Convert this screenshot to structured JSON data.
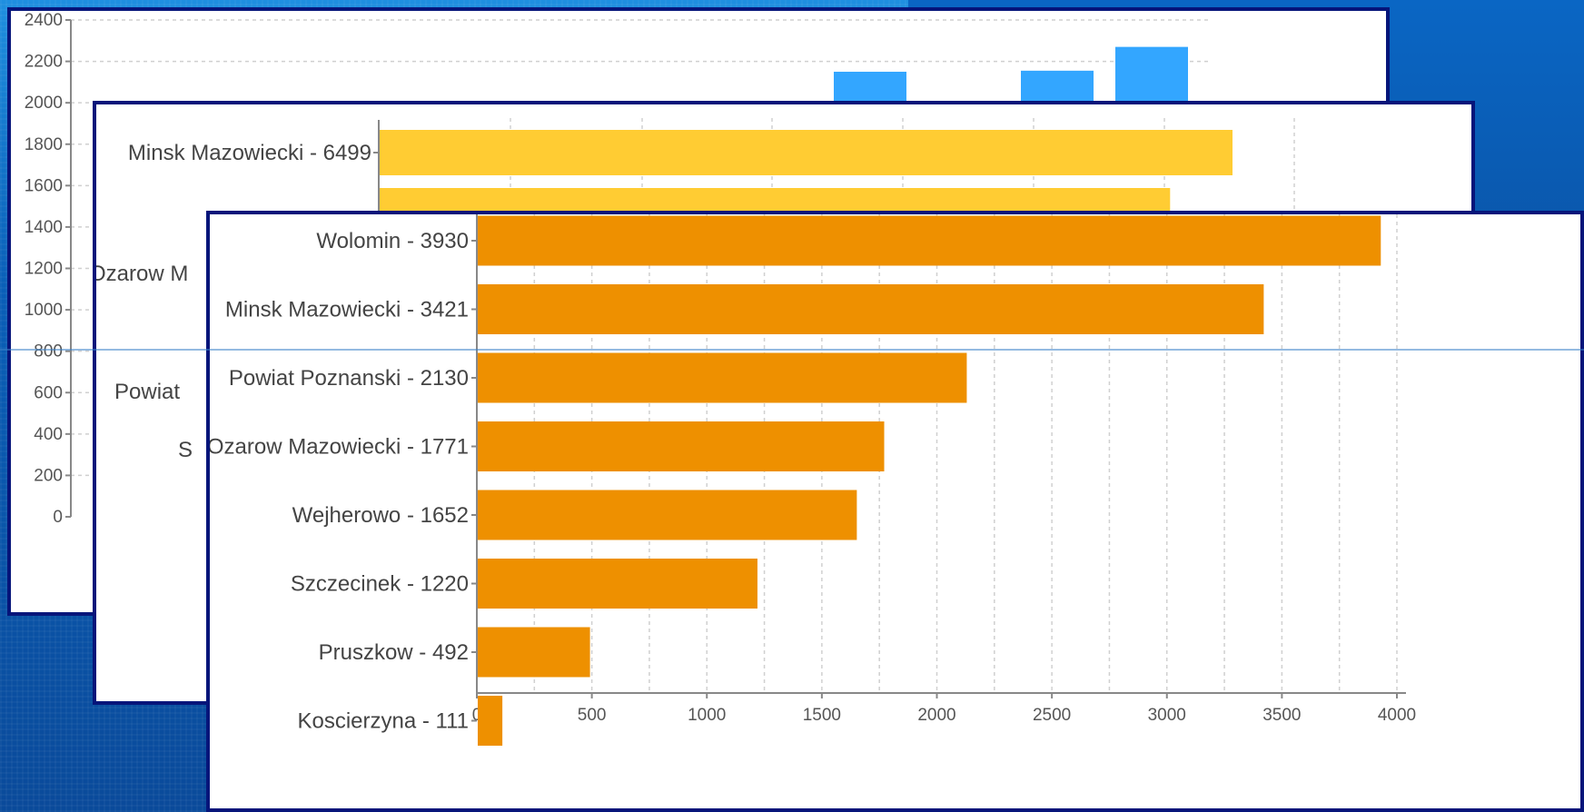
{
  "slide": {
    "background_color": "#0a5fb8",
    "panel_border_color": "#06157a"
  },
  "chart_data": [
    {
      "type": "bar",
      "orientation": "vertical",
      "layer": "back",
      "color": "#33a6ff",
      "ylim": [
        0,
        2400
      ],
      "yticks": [
        "0",
        "200",
        "400",
        "600",
        "800",
        "1000",
        "1200",
        "1400",
        "1600",
        "1800",
        "2000",
        "2200",
        "2400"
      ],
      "visible_bar_values": [
        2150,
        2155,
        2270
      ],
      "grid": true
    },
    {
      "type": "bar",
      "orientation": "horizontal",
      "layer": "middle",
      "color": "#ffcc33",
      "categories": [
        "Minsk Mazowiecki - 6499",
        "Ozarow M",
        "Powiat",
        "S"
      ],
      "visible_values": [
        3280,
        3040
      ],
      "grid": true
    },
    {
      "type": "bar",
      "orientation": "horizontal",
      "layer": "front",
      "color": "#ee9000",
      "categories": [
        "Wolomin - 3930",
        "Minsk Mazowiecki - 3421",
        "Powiat Poznanski - 2130",
        "Ozarow Mazowiecki - 1771",
        "Wejherowo - 1652",
        "Szczecinek - 1220",
        "Pruszkow - 492",
        "Koscierzyna - 111"
      ],
      "values": [
        3930,
        3421,
        2130,
        1771,
        1652,
        1220,
        492,
        111
      ],
      "xlim": [
        0,
        4000
      ],
      "xticks": [
        "0",
        "500",
        "1000",
        "1500",
        "2000",
        "2500",
        "3000",
        "3500",
        "4000"
      ],
      "grid": true
    }
  ]
}
